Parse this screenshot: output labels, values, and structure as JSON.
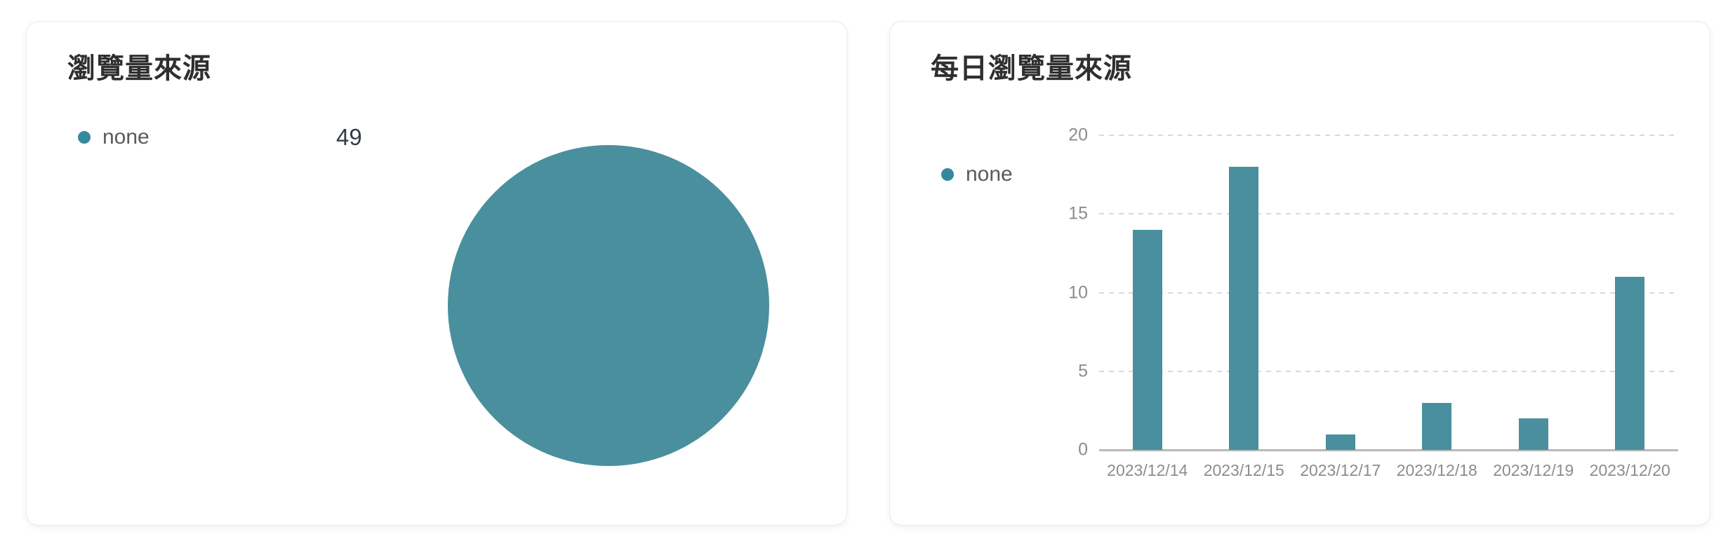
{
  "cards": {
    "pie": {
      "title": "瀏覽量來源"
    },
    "bar": {
      "title": "每日瀏覽量來源"
    }
  },
  "colors": {
    "series_teal": "#4A8F9E",
    "legend_dot_teal": "#35899D",
    "title_text": "#2F2F2F",
    "legend_text": "#5A5A5A",
    "value_text": "#333B46",
    "axis_text": "#8C8C8C",
    "gridline": "#D8D8D8",
    "axis_line": "#B9B9B9",
    "card_border": "#E9E9E9",
    "card_bg": "#FFFFFF"
  },
  "chart_data": [
    {
      "type": "pie",
      "title": "瀏覽量來源",
      "series": [
        {
          "name": "none",
          "value": 49
        }
      ],
      "total": 49,
      "color": "#4A8F9E",
      "legend_position": "top-left"
    },
    {
      "type": "bar",
      "title": "每日瀏覽量來源",
      "series_name": "none",
      "categories": [
        "2023/12/14",
        "2023/12/15",
        "2023/12/17",
        "2023/12/18",
        "2023/12/19",
        "2023/12/20"
      ],
      "values": [
        14,
        18,
        1,
        3,
        2,
        11
      ],
      "ylim": [
        0,
        20
      ],
      "yticks": [
        0,
        5,
        10,
        15,
        20
      ],
      "grid": "horizontal-dashed",
      "legend_position": "left",
      "color": "#4A8F9E"
    }
  ]
}
